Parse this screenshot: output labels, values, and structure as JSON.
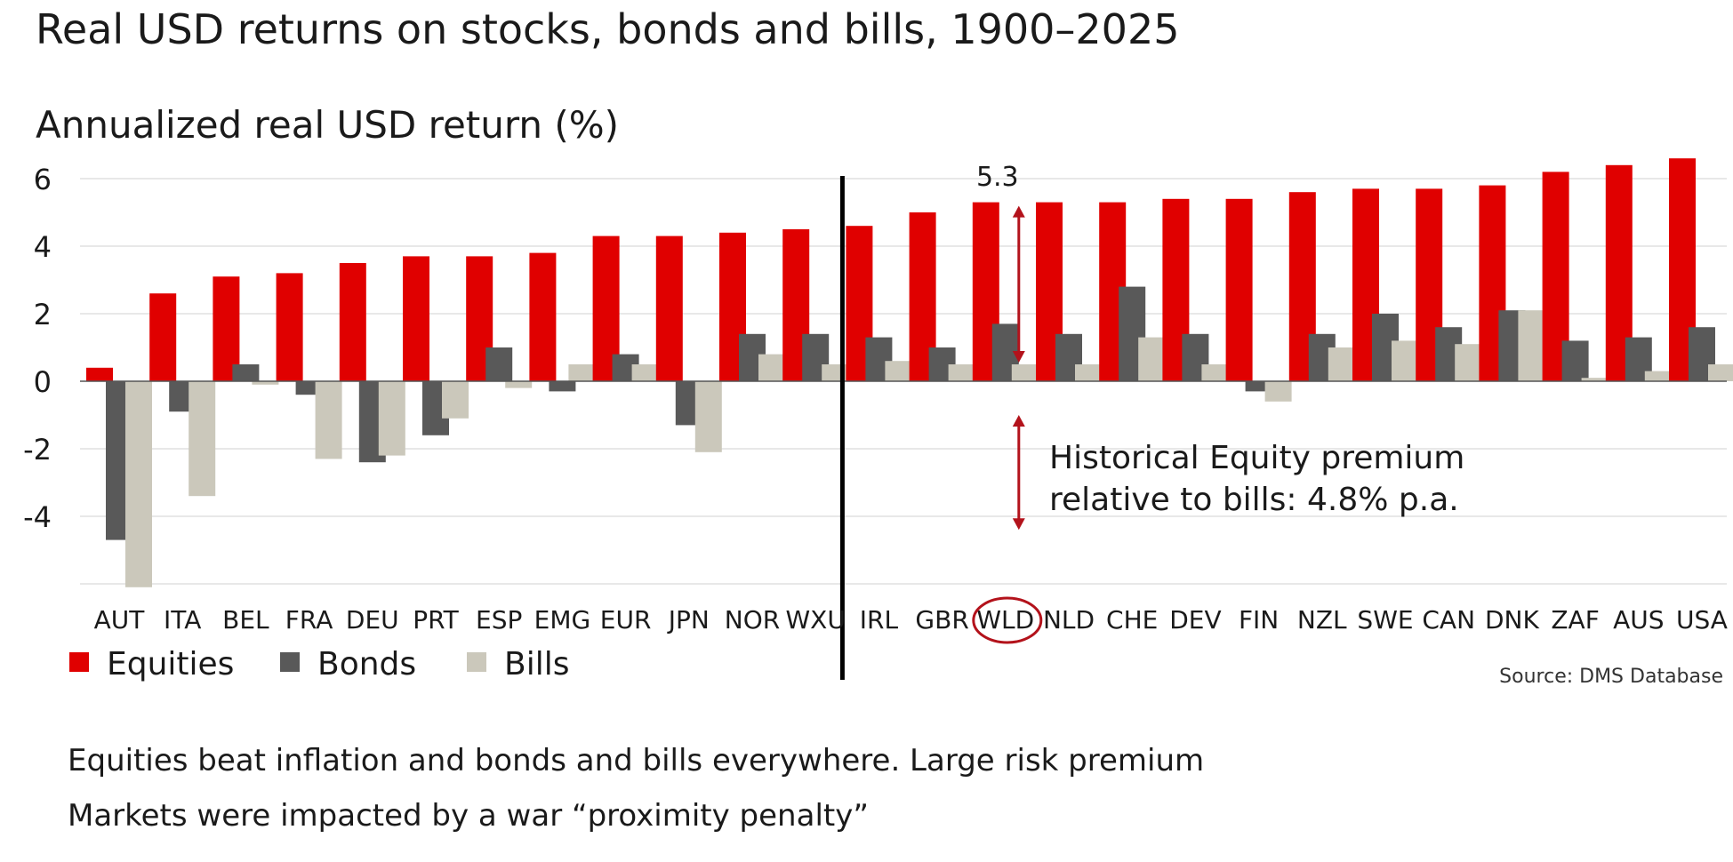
{
  "title": "Real USD returns on stocks, bonds and bills, 1900–2025",
  "bullets": [
    "Equities beat inflation and bonds and bills everywhere. Large risk premium",
    "Markets were impacted by a war “proximity penalty”"
  ],
  "colors": {
    "equities": "#e00000",
    "bonds": "#595959",
    "bills": "#cbc8bb",
    "annotation": "#b3121b",
    "text": "#1a1a1a",
    "grid": "#d9d9d9"
  },
  "chart_data": {
    "type": "bar",
    "ylabel": "Annualized real USD return (%)",
    "ylim": [
      -6,
      6.3
    ],
    "yticks": [
      6,
      4,
      2,
      0,
      -2,
      -4
    ],
    "grid": true,
    "legend_position": "bottom-left",
    "categories": [
      "AUT",
      "ITA",
      "BEL",
      "FRA",
      "DEU",
      "PRT",
      "ESP",
      "EMG",
      "EUR",
      "JPN",
      "NOR",
      "WXU",
      "IRL",
      "GBR",
      "WLD",
      "NLD",
      "CHE",
      "DEV",
      "FIN",
      "NZL",
      "SWE",
      "CAN",
      "DNK",
      "ZAF",
      "AUS",
      "USA"
    ],
    "series": [
      {
        "name": "Equities",
        "values": [
          0.4,
          2.6,
          3.1,
          3.2,
          3.5,
          3.7,
          3.7,
          3.8,
          4.3,
          4.3,
          4.4,
          4.5,
          4.6,
          5.0,
          5.3,
          5.3,
          5.3,
          5.4,
          5.4,
          5.6,
          5.7,
          5.7,
          5.8,
          6.2,
          6.4,
          6.6
        ]
      },
      {
        "name": "Bonds",
        "values": [
          -4.7,
          -0.9,
          0.5,
          -0.4,
          -2.4,
          -1.6,
          1.0,
          -0.3,
          0.8,
          -1.3,
          1.4,
          1.4,
          1.3,
          1.0,
          1.7,
          1.4,
          2.8,
          1.4,
          -0.3,
          1.4,
          2.0,
          1.6,
          2.1,
          1.2,
          1.3,
          1.6
        ]
      },
      {
        "name": "Bills",
        "values": [
          -6.1,
          -3.4,
          -0.1,
          -2.3,
          -2.2,
          -1.1,
          -0.2,
          0.5,
          0.5,
          -2.1,
          0.8,
          0.5,
          0.6,
          0.5,
          0.5,
          0.5,
          1.3,
          0.5,
          -0.6,
          1.0,
          1.2,
          1.1,
          2.1,
          0.1,
          0.3,
          0.5
        ]
      }
    ],
    "annotations": {
      "wld_value_label": "5.3",
      "premium_text_line1": "Historical Equity premium",
      "premium_text_line2": "relative to bills: 4.8% p.a.",
      "highlight_category": "WLD",
      "divider_after": "WXU"
    },
    "source": "Source: DMS Database"
  }
}
